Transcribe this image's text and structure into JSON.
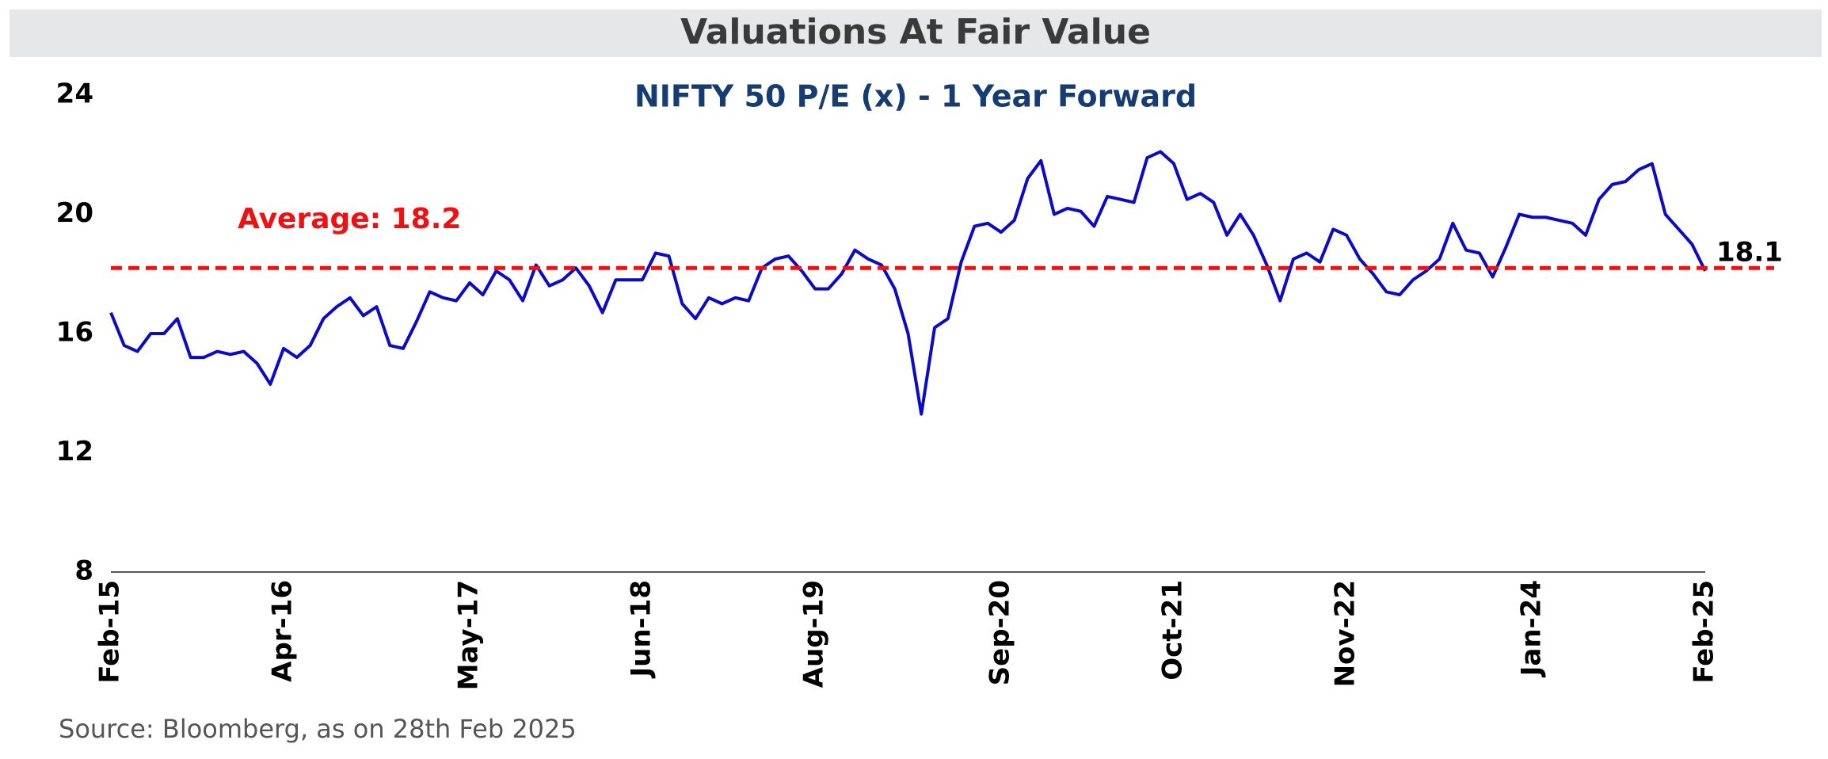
{
  "chart_data": {
    "type": "line",
    "header": "Valuations At Fair Value",
    "title": "NIFTY 50 P/E (x) - 1 Year Forward",
    "source": "Source: Bloomberg, as on 28th Feb 2025",
    "categories": [
      "Feb-15",
      null,
      null,
      null,
      null,
      null,
      null,
      null,
      null,
      null,
      null,
      null,
      null,
      "Apr-16",
      null,
      null,
      null,
      null,
      null,
      null,
      null,
      null,
      null,
      null,
      null,
      null,
      null,
      "May-17",
      null,
      null,
      null,
      null,
      null,
      null,
      null,
      null,
      null,
      null,
      null,
      null,
      "Jun-18",
      null,
      null,
      null,
      null,
      null,
      null,
      null,
      null,
      null,
      null,
      null,
      null,
      "Aug-19",
      null,
      null,
      null,
      null,
      null,
      null,
      null,
      null,
      null,
      null,
      null,
      null,
      null,
      "Sep-20",
      null,
      null,
      null,
      null,
      null,
      null,
      null,
      null,
      null,
      null,
      null,
      null,
      "Oct-21",
      null,
      null,
      null,
      null,
      null,
      null,
      null,
      null,
      null,
      null,
      null,
      null,
      "Nov-22",
      null,
      null,
      null,
      null,
      null,
      null,
      null,
      null,
      null,
      null,
      null,
      null,
      null,
      "Jan-24",
      null,
      null,
      null,
      null,
      null,
      null,
      null,
      null,
      null,
      null,
      null,
      null,
      "Feb-25"
    ],
    "values": [
      16.7,
      15.6,
      15.4,
      16.0,
      16.0,
      16.5,
      15.2,
      15.2,
      15.4,
      15.3,
      15.4,
      15.0,
      14.3,
      15.5,
      15.2,
      15.6,
      16.5,
      16.9,
      17.2,
      16.6,
      16.9,
      15.6,
      15.5,
      16.4,
      17.4,
      17.2,
      17.1,
      17.7,
      17.3,
      18.1,
      17.8,
      17.1,
      18.3,
      17.6,
      17.8,
      18.2,
      17.6,
      16.7,
      17.8,
      17.8,
      17.8,
      18.7,
      18.6,
      17.0,
      16.5,
      17.2,
      17.0,
      17.2,
      17.1,
      18.2,
      18.5,
      18.6,
      18.1,
      17.5,
      17.5,
      18.0,
      18.8,
      18.5,
      18.3,
      17.5,
      16.0,
      13.3,
      16.2,
      16.5,
      18.4,
      19.6,
      19.7,
      19.4,
      19.8,
      21.2,
      21.8,
      20.0,
      20.2,
      20.1,
      19.6,
      20.6,
      20.5,
      20.4,
      21.9,
      22.1,
      21.7,
      20.5,
      20.7,
      20.4,
      19.3,
      20.0,
      19.3,
      18.3,
      17.1,
      18.5,
      18.7,
      18.4,
      19.5,
      19.3,
      18.5,
      18.0,
      17.4,
      17.3,
      17.8,
      18.1,
      18.5,
      19.7,
      18.8,
      18.7,
      17.9,
      18.9,
      20.0,
      19.9,
      19.9,
      19.8,
      19.7,
      19.3,
      20.5,
      21.0,
      21.1,
      21.5,
      21.7,
      20.0,
      19.5,
      19.0,
      18.1
    ],
    "color": "#0a0ac8",
    "average": {
      "value": 18.2,
      "label": "Average: 18.2",
      "color": "#ee1111"
    },
    "ylim": [
      8,
      24
    ],
    "yticks": [
      8,
      12,
      16,
      20,
      24
    ],
    "grid": false
  }
}
